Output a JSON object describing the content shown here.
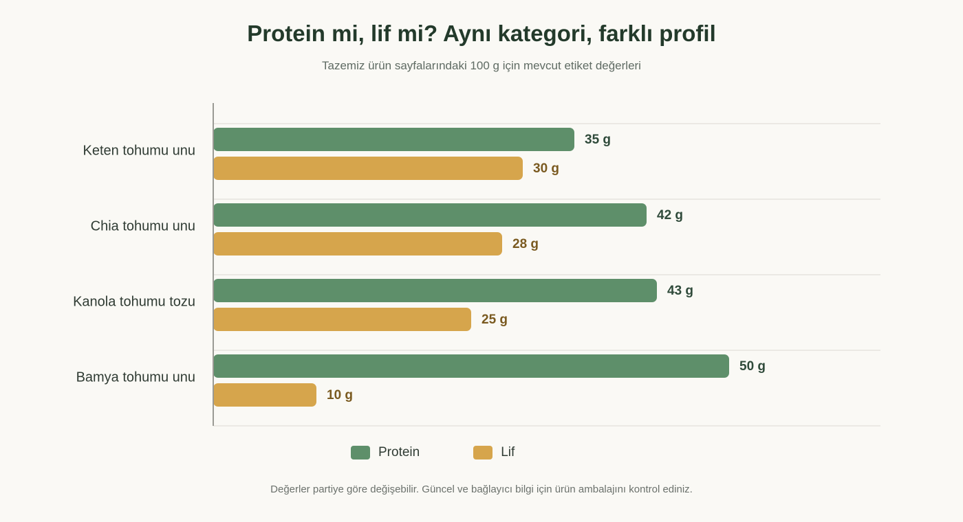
{
  "title": "Protein mi, lif mi? Aynı kategori, farklı profil",
  "subtitle": "Tazemiz ürün sayfalarındaki 100 g için mevcut etiket değerleri",
  "footnote": "Değerler partiye göre değişebilir. Güncel ve bağlayıcı bilgi için ürün ambalajını kontrol ediniz.",
  "legend": {
    "placement": "bottom-center",
    "protein_label": "Protein",
    "fiber_label": "Lif"
  },
  "colors": {
    "protein": "#5e8f6a",
    "fiber": "#d6a54c",
    "grid": "#e6e4de",
    "axis": "#9a9a94"
  },
  "chart_data": {
    "type": "bar",
    "orientation": "horizontal",
    "categories": [
      "Keten tohumu unu",
      "Chia tohumu unu",
      "Kanola tohumu tozu",
      "Bamya tohumu unu"
    ],
    "series": [
      {
        "name": "Protein",
        "values": [
          35,
          42,
          43,
          50
        ]
      },
      {
        "name": "Lif",
        "values": [
          30,
          28,
          25,
          10
        ]
      }
    ],
    "unit": "g",
    "xlim": [
      0,
      65
    ],
    "grid": true
  }
}
